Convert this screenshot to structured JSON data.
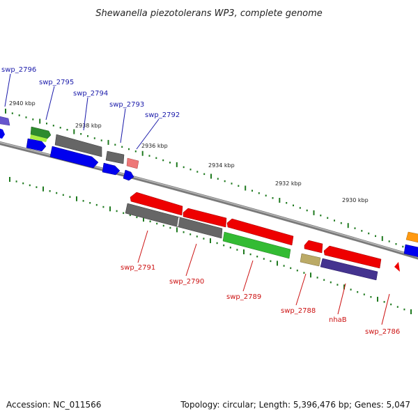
{
  "title": "Shewanella piezotolerans WP3, complete genome",
  "footer": {
    "accession": "Accession: NC_011566",
    "topology": "Topology: circular; Length: 5,396,476 bp; Genes: 5,047"
  },
  "colors": {
    "backbone": "#888888",
    "forward_label": "#1a1aaa",
    "reverse_label": "#cc1111",
    "tick": "#1f7a1f"
  },
  "kbp_labels": [
    "2940 kbp",
    "2938 kbp",
    "2936 kbp",
    "2934 kbp",
    "2932 kbp",
    "2930 kbp"
  ],
  "genes_forward": [
    {
      "label": "swp_2796",
      "color": "#0000ee"
    },
    {
      "label": "swp_2795",
      "color": "#2e8b2e"
    },
    {
      "label": "swp_2794",
      "color": "#666666"
    },
    {
      "label": "swp_2793",
      "color": "#666666"
    },
    {
      "label": "swp_2792",
      "color": "#ee7777"
    }
  ],
  "genes_reverse": [
    {
      "label": "swp_2791",
      "color": "#ee0000"
    },
    {
      "label": "swp_2790",
      "color": "#666666"
    },
    {
      "label": "swp_2789",
      "color": "#33bb33"
    },
    {
      "label": "swp_2788",
      "color": "#bbaa66"
    },
    {
      "label": "nhaB",
      "color": "#44338f"
    },
    {
      "label": "swp_2786",
      "color": "#ee0000"
    }
  ]
}
